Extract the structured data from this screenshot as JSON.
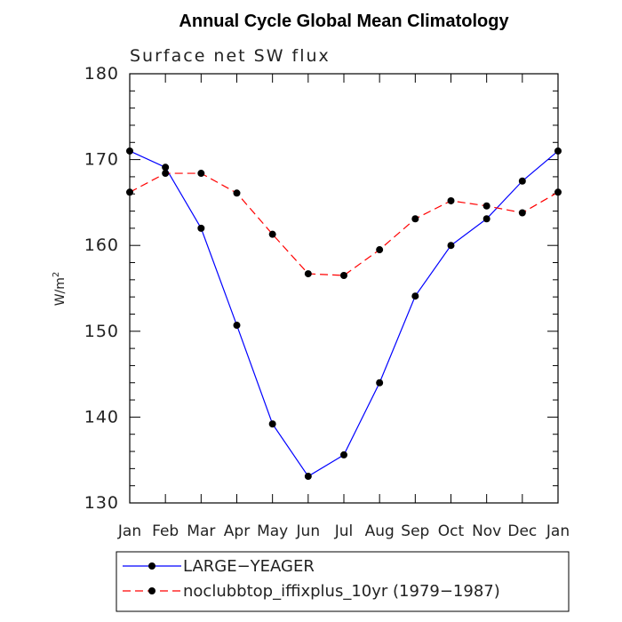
{
  "chart_data": {
    "type": "line",
    "title": "Annual Cycle Global Mean Climatology",
    "subtitle": "Surface net SW flux",
    "ylabel": "W/m",
    "ylabel_superscript": "2",
    "ylim": [
      130,
      180
    ],
    "yticks": [
      130,
      140,
      150,
      160,
      170,
      180
    ],
    "categories": [
      "Jan",
      "Feb",
      "Mar",
      "Apr",
      "May",
      "Jun",
      "Jul",
      "Aug",
      "Sep",
      "Oct",
      "Nov",
      "Dec",
      "Jan"
    ],
    "series": [
      {
        "name": "LARGE−YEAGER",
        "color": "#0000ff",
        "dash": "solid",
        "values": [
          171.0,
          169.1,
          162.0,
          150.7,
          139.2,
          133.1,
          135.6,
          144.0,
          154.1,
          160.0,
          163.1,
          167.5,
          171.0
        ]
      },
      {
        "name": "noclubbtop_iffixplus_10yr (1979−1987)",
        "color": "#ff0000",
        "dash": "dashed",
        "values": [
          166.2,
          168.4,
          168.4,
          166.1,
          161.3,
          156.7,
          156.5,
          159.5,
          163.1,
          165.2,
          164.6,
          163.8,
          166.2
        ]
      }
    ],
    "grid": false,
    "legend_position": "bottom"
  }
}
